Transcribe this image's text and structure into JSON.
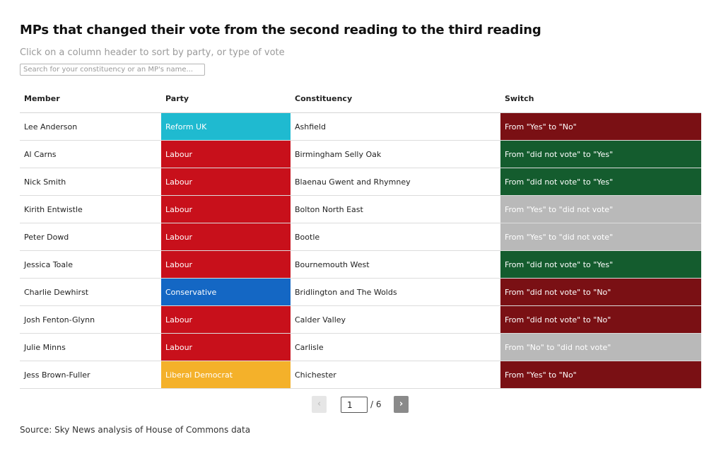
{
  "title": "MPs that changed their vote from the second reading to the third reading",
  "subtitle": "Click on a column header to sort by party, or type of vote",
  "search": {
    "placeholder": "Search for your constituency or an MP's name..."
  },
  "columns": [
    "Member",
    "Party",
    "Constituency",
    "Switch"
  ],
  "party_colors": {
    "Reform UK": "#1fbad0",
    "Labour": "#c8101b",
    "Conservative": "#1467c4",
    "Liberal Democrat": "#f4b12a"
  },
  "switch_colors": {
    "to_yes": "#145c2e",
    "to_no": "#7a1014",
    "to_did_not_vote": "#b9b9b9"
  },
  "rows": [
    {
      "member": "Lee Anderson",
      "party": "Reform UK",
      "constituency": "Ashfield",
      "switch": "From \"Yes\" to \"No\"",
      "switch_type": "to_no"
    },
    {
      "member": "Al Carns",
      "party": "Labour",
      "constituency": "Birmingham Selly Oak",
      "switch": "From \"did not vote\" to \"Yes\"",
      "switch_type": "to_yes"
    },
    {
      "member": "Nick Smith",
      "party": "Labour",
      "constituency": "Blaenau Gwent and Rhymney",
      "switch": "From \"did not vote\" to \"Yes\"",
      "switch_type": "to_yes"
    },
    {
      "member": "Kirith Entwistle",
      "party": "Labour",
      "constituency": "Bolton North East",
      "switch": "From \"Yes\" to \"did not vote\"",
      "switch_type": "to_did_not_vote"
    },
    {
      "member": "Peter Dowd",
      "party": "Labour",
      "constituency": "Bootle",
      "switch": "From \"Yes\" to \"did not vote\"",
      "switch_type": "to_did_not_vote"
    },
    {
      "member": "Jessica Toale",
      "party": "Labour",
      "constituency": "Bournemouth West",
      "switch": "From \"did not vote\" to \"Yes\"",
      "switch_type": "to_yes"
    },
    {
      "member": "Charlie Dewhirst",
      "party": "Conservative",
      "constituency": "Bridlington and The Wolds",
      "switch": "From \"did not vote\" to \"No\"",
      "switch_type": "to_no"
    },
    {
      "member": "Josh Fenton-Glynn",
      "party": "Labour",
      "constituency": "Calder Valley",
      "switch": "From \"did not vote\" to \"No\"",
      "switch_type": "to_no"
    },
    {
      "member": "Julie Minns",
      "party": "Labour",
      "constituency": "Carlisle",
      "switch": "From \"No\" to \"did not vote\"",
      "switch_type": "to_did_not_vote"
    },
    {
      "member": "Jess Brown-Fuller",
      "party": "Liberal Democrat",
      "constituency": "Chichester",
      "switch": "From \"Yes\" to \"No\"",
      "switch_type": "to_no"
    }
  ],
  "pagination": {
    "prev_label": "‹",
    "next_label": "›",
    "current_page": "1",
    "total_label": "/ 6"
  },
  "source": "Source: Sky News analysis of House of Commons data"
}
